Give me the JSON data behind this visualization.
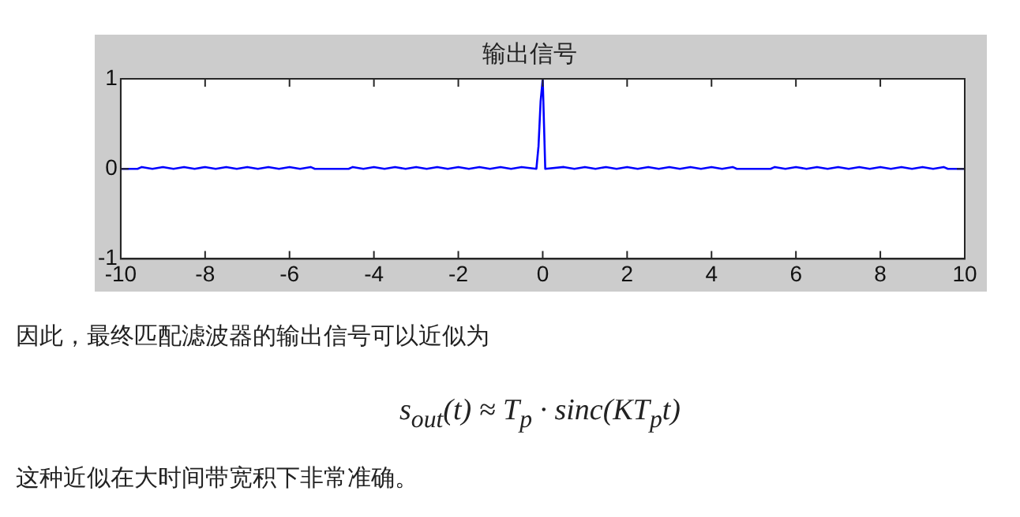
{
  "chart_data": {
    "type": "line",
    "title": "输出信号",
    "x": [
      -10,
      -9.6,
      -9.5,
      -9.25,
      -9,
      -8.75,
      -8.5,
      -8.25,
      -8,
      -7.75,
      -7.5,
      -7.25,
      -7,
      -6.75,
      -6.5,
      -6.25,
      -6,
      -5.75,
      -5.5,
      -5.4,
      -4.6,
      -4.5,
      -4.25,
      -4,
      -3.75,
      -3.5,
      -3.25,
      -3,
      -2.75,
      -2.5,
      -2.25,
      -2,
      -1.75,
      -1.5,
      -1.25,
      -1,
      -0.75,
      -0.5,
      -0.15,
      -0.1,
      -0.05,
      0,
      0.03,
      0.06,
      0.5,
      0.75,
      1,
      1.25,
      1.5,
      1.75,
      2,
      2.25,
      2.5,
      2.75,
      3,
      3.25,
      3.5,
      3.75,
      4,
      4.25,
      4.5,
      4.6,
      5.4,
      5.5,
      5.75,
      6,
      6.25,
      6.5,
      6.75,
      7,
      7.25,
      7.5,
      7.75,
      8,
      8.25,
      8.5,
      8.75,
      9,
      9.25,
      9.5,
      9.6,
      10
    ],
    "series": [
      {
        "color": "#0000ff",
        "values": [
          0,
          0,
          0.02,
          0,
          0.02,
          0,
          0.02,
          0,
          0.02,
          0,
          0.02,
          0,
          0.02,
          0,
          0.02,
          0,
          0.02,
          0,
          0.02,
          0,
          0,
          0.02,
          0,
          0.02,
          0,
          0.02,
          0,
          0.02,
          0,
          0.02,
          0,
          0.02,
          0,
          0.02,
          0,
          0.02,
          0,
          0.02,
          0,
          0.25,
          0.75,
          1,
          0.5,
          0,
          0.02,
          0,
          0.02,
          0,
          0.02,
          0,
          0.02,
          0,
          0.02,
          0,
          0.02,
          0,
          0.02,
          0,
          0.02,
          0,
          0.02,
          0,
          0,
          0.02,
          0,
          0.02,
          0,
          0.02,
          0,
          0.02,
          0,
          0.02,
          0,
          0.02,
          0,
          0.02,
          0,
          0.02,
          0,
          0.02,
          0,
          0
        ]
      }
    ],
    "xlim": [
      -10,
      10
    ],
    "xticks": [
      -10,
      -8,
      -6,
      -4,
      -2,
      0,
      2,
      4,
      6,
      8,
      10
    ],
    "ylim": [
      -1,
      1
    ],
    "yticks": [
      -1,
      0,
      1
    ],
    "grid": false,
    "legend": false,
    "marker": "none",
    "line_style": "solid",
    "annotations": [
      "因此，最终匹配滤波器的输出信号可以近似为",
      "s$_{out}$(t) ≈ T$_{p}$ · sinc(KT$_{p}$t)",
      "这种近似在大时间带宽积下非常准确。"
    ]
  }
}
